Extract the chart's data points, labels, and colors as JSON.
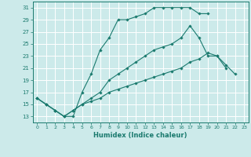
{
  "xlabel": "Humidex (Indice chaleur)",
  "bg_color": "#cceaea",
  "grid_color": "#ffffff",
  "line_color": "#1a7a6e",
  "xlim": [
    -0.5,
    23.5
  ],
  "ylim": [
    12,
    32
  ],
  "yticks": [
    13,
    15,
    17,
    19,
    21,
    23,
    25,
    27,
    29,
    31
  ],
  "xticks": [
    0,
    1,
    2,
    3,
    4,
    5,
    6,
    7,
    8,
    9,
    10,
    11,
    12,
    13,
    14,
    15,
    16,
    17,
    18,
    19,
    20,
    21,
    22,
    23
  ],
  "series": [
    {
      "x": [
        0,
        1,
        2,
        3,
        4,
        5,
        6,
        7,
        8,
        9,
        10,
        11,
        12,
        13,
        14,
        15,
        16,
        17,
        18,
        19
      ],
      "y": [
        16,
        15,
        14,
        13,
        13,
        17,
        20,
        24,
        26,
        29,
        29,
        29.5,
        30,
        31,
        31,
        31,
        31,
        31,
        30,
        30
      ]
    },
    {
      "x": [
        0,
        1,
        2,
        3,
        4,
        5,
        6,
        7,
        8,
        9,
        10,
        11,
        12,
        13,
        14,
        15,
        16,
        17,
        18,
        19,
        20,
        21
      ],
      "y": [
        16,
        15,
        14,
        13,
        14,
        15,
        16,
        17,
        19,
        20,
        21,
        22,
        23,
        24,
        24.5,
        25,
        26,
        28,
        26,
        23,
        23,
        21
      ]
    },
    {
      "x": [
        0,
        1,
        2,
        3,
        4,
        5,
        6,
        7,
        8,
        9,
        10,
        11,
        12,
        13,
        14,
        15,
        16,
        17,
        18,
        19,
        20,
        21,
        22
      ],
      "y": [
        16,
        15,
        14,
        13,
        14,
        15,
        15.5,
        16,
        17,
        17.5,
        18,
        18.5,
        19,
        19.5,
        20,
        20.5,
        21,
        22,
        22.5,
        23.5,
        23,
        21.5,
        20
      ]
    }
  ]
}
